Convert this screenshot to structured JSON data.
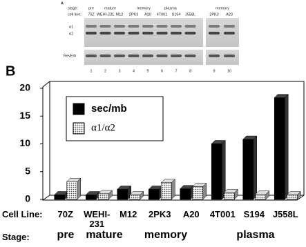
{
  "blot": {
    "panel": "A",
    "stage_label": "stage:",
    "stages": [
      "pre",
      "mature",
      "memory",
      "plasma",
      "memory"
    ],
    "cell_line_label": "cell line:",
    "cell_lines": [
      "70Z",
      "WEHI-231",
      "M12",
      "2PK3",
      "A20",
      "4T001",
      "S194",
      "J558L",
      "2PK3",
      "A20"
    ],
    "bands": [
      "α1",
      "α2",
      "RevErb"
    ],
    "lanes": [
      "1",
      "2",
      "3",
      "4",
      "5",
      "6",
      "7",
      "8",
      "9",
      "10"
    ]
  },
  "chart_data": {
    "type": "bar",
    "panel": "B",
    "categories": [
      "70Z",
      "WEHI-231",
      "M12",
      "2PK3",
      "A20",
      "4T001",
      "S194",
      "J558L"
    ],
    "category_label": "Cell Line:",
    "stage_label": "Stage:",
    "stages": [
      "pre",
      "mature",
      "memory",
      "plasma"
    ],
    "series": [
      {
        "name": "sec/mb",
        "color": "#000000",
        "values": [
          0.8,
          0.8,
          1.8,
          1.8,
          1.9,
          10,
          10.8,
          18.3
        ]
      },
      {
        "name": "α1/α2",
        "color": "#bbbbbb",
        "pattern": "dots",
        "values": [
          3.2,
          1,
          0.8,
          3,
          2.3,
          1.2,
          0.9,
          0.8
        ]
      }
    ],
    "ylim": [
      0,
      20
    ],
    "yticks": [
      0,
      5,
      10,
      15,
      20
    ],
    "legend": "upper left"
  }
}
